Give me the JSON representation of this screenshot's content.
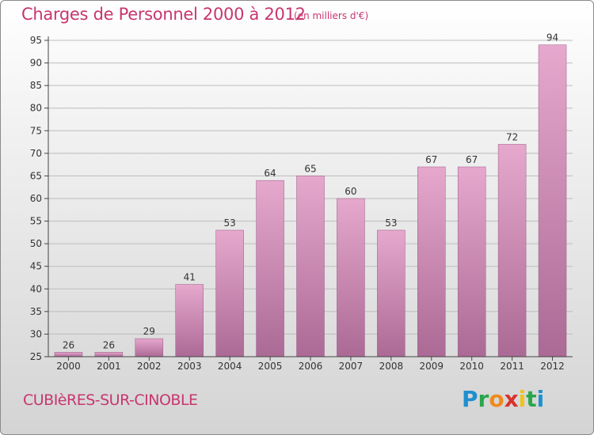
{
  "title": "Charges de Personnel 2000 à 2012",
  "subtitle": "(en milliers d'€)",
  "town": "CUBIèRES-SUR-CINOBLE",
  "brand": {
    "letters": [
      {
        "ch": "P",
        "color": "#1f8fd0"
      },
      {
        "ch": "r",
        "color": "#2aa64a"
      },
      {
        "ch": "o",
        "color": "#f08a1c"
      },
      {
        "ch": "x",
        "color": "#d9322d"
      },
      {
        "ch": "i",
        "color": "#f0c419"
      },
      {
        "ch": "t",
        "color": "#2aa64a"
      },
      {
        "ch": "i",
        "color": "#1f8fd0"
      }
    ]
  },
  "colors": {
    "bar_top": "#e6a8cd",
    "bar_bottom": "#ab6a95",
    "grid": "#bcbcbc",
    "axis": "#444444"
  },
  "chart_data": {
    "type": "bar",
    "categories": [
      "2000",
      "2001",
      "2002",
      "2003",
      "2004",
      "2005",
      "2006",
      "2007",
      "2008",
      "2009",
      "2010",
      "2011",
      "2012"
    ],
    "values": [
      26,
      26,
      29,
      41,
      53,
      64,
      65,
      60,
      53,
      67,
      67,
      72,
      94
    ],
    "ylim": [
      25,
      95
    ],
    "yticks": [
      25,
      30,
      35,
      40,
      45,
      50,
      55,
      60,
      65,
      70,
      75,
      80,
      85,
      90,
      95
    ],
    "grid": true,
    "data_labels": true
  }
}
